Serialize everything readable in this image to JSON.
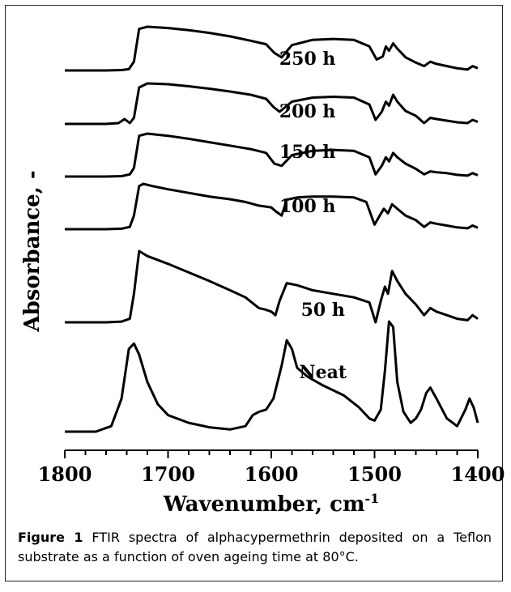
{
  "caption": {
    "label": "Figure 1",
    "text": "FTIR spectra of alphacypermethrin deposited on a Teflon substrate as a function of oven ageing time at 80°C."
  },
  "chart_data": {
    "type": "line",
    "xlabel": "Wavenumber, cm",
    "xlabel_sup": "-1",
    "ylabel": "Absorbance, -",
    "x_reversed": true,
    "xlim": [
      1800,
      1400
    ],
    "xticks": [
      1800,
      1700,
      1600,
      1500,
      1400
    ],
    "grid": false,
    "series": [
      {
        "name": "250 h",
        "points": [
          [
            1800,
            0
          ],
          [
            1760,
            0
          ],
          [
            1745,
            0.01
          ],
          [
            1738,
            0.03
          ],
          [
            1733,
            0.2
          ],
          [
            1728,
            0.95
          ],
          [
            1720,
            1.0
          ],
          [
            1700,
            0.97
          ],
          [
            1680,
            0.92
          ],
          [
            1660,
            0.86
          ],
          [
            1640,
            0.78
          ],
          [
            1620,
            0.68
          ],
          [
            1605,
            0.6
          ],
          [
            1597,
            0.4
          ],
          [
            1590,
            0.3
          ],
          [
            1580,
            0.58
          ],
          [
            1560,
            0.7
          ],
          [
            1540,
            0.72
          ],
          [
            1520,
            0.7
          ],
          [
            1505,
            0.55
          ],
          [
            1498,
            0.25
          ],
          [
            1492,
            0.32
          ],
          [
            1489,
            0.55
          ],
          [
            1486,
            0.45
          ],
          [
            1482,
            0.62
          ],
          [
            1478,
            0.5
          ],
          [
            1470,
            0.3
          ],
          [
            1460,
            0.18
          ],
          [
            1452,
            0.1
          ],
          [
            1446,
            0.2
          ],
          [
            1440,
            0.15
          ],
          [
            1430,
            0.1
          ],
          [
            1420,
            0.05
          ],
          [
            1410,
            0.02
          ],
          [
            1405,
            0.1
          ],
          [
            1400,
            0.05
          ]
        ]
      },
      {
        "name": "200 h",
        "points": [
          [
            1800,
            0
          ],
          [
            1760,
            0
          ],
          [
            1748,
            0.02
          ],
          [
            1742,
            0.12
          ],
          [
            1737,
            0.02
          ],
          [
            1733,
            0.15
          ],
          [
            1728,
            0.9
          ],
          [
            1720,
            1.0
          ],
          [
            1700,
            0.98
          ],
          [
            1680,
            0.93
          ],
          [
            1660,
            0.87
          ],
          [
            1640,
            0.8
          ],
          [
            1620,
            0.72
          ],
          [
            1605,
            0.62
          ],
          [
            1598,
            0.42
          ],
          [
            1592,
            0.3
          ],
          [
            1580,
            0.55
          ],
          [
            1560,
            0.65
          ],
          [
            1540,
            0.67
          ],
          [
            1520,
            0.65
          ],
          [
            1505,
            0.48
          ],
          [
            1499,
            0.1
          ],
          [
            1493,
            0.3
          ],
          [
            1489,
            0.55
          ],
          [
            1486,
            0.45
          ],
          [
            1482,
            0.72
          ],
          [
            1478,
            0.55
          ],
          [
            1470,
            0.32
          ],
          [
            1460,
            0.2
          ],
          [
            1452,
            0.02
          ],
          [
            1446,
            0.15
          ],
          [
            1440,
            0.12
          ],
          [
            1430,
            0.08
          ],
          [
            1420,
            0.04
          ],
          [
            1410,
            0.02
          ],
          [
            1405,
            0.1
          ],
          [
            1400,
            0.05
          ]
        ]
      },
      {
        "name": "150 h",
        "points": [
          [
            1800,
            0
          ],
          [
            1760,
            0
          ],
          [
            1745,
            0.01
          ],
          [
            1737,
            0.05
          ],
          [
            1733,
            0.2
          ],
          [
            1728,
            0.95
          ],
          [
            1720,
            1.0
          ],
          [
            1700,
            0.95
          ],
          [
            1680,
            0.88
          ],
          [
            1660,
            0.8
          ],
          [
            1640,
            0.72
          ],
          [
            1620,
            0.64
          ],
          [
            1605,
            0.55
          ],
          [
            1597,
            0.3
          ],
          [
            1590,
            0.25
          ],
          [
            1580,
            0.5
          ],
          [
            1560,
            0.6
          ],
          [
            1540,
            0.62
          ],
          [
            1520,
            0.6
          ],
          [
            1505,
            0.45
          ],
          [
            1499,
            0.05
          ],
          [
            1493,
            0.25
          ],
          [
            1489,
            0.45
          ],
          [
            1486,
            0.35
          ],
          [
            1482,
            0.55
          ],
          [
            1478,
            0.45
          ],
          [
            1470,
            0.3
          ],
          [
            1460,
            0.18
          ],
          [
            1452,
            0.05
          ],
          [
            1446,
            0.12
          ],
          [
            1440,
            0.1
          ],
          [
            1430,
            0.08
          ],
          [
            1420,
            0.04
          ],
          [
            1410,
            0.02
          ],
          [
            1405,
            0.08
          ],
          [
            1400,
            0.03
          ]
        ]
      },
      {
        "name": "100 h",
        "points": [
          [
            1800,
            0
          ],
          [
            1760,
            0
          ],
          [
            1745,
            0.01
          ],
          [
            1737,
            0.05
          ],
          [
            1733,
            0.3
          ],
          [
            1728,
            0.95
          ],
          [
            1724,
            1.0
          ],
          [
            1715,
            0.95
          ],
          [
            1700,
            0.88
          ],
          [
            1680,
            0.8
          ],
          [
            1660,
            0.72
          ],
          [
            1640,
            0.66
          ],
          [
            1625,
            0.6
          ],
          [
            1612,
            0.52
          ],
          [
            1606,
            0.5
          ],
          [
            1600,
            0.48
          ],
          [
            1596,
            0.4
          ],
          [
            1590,
            0.3
          ],
          [
            1585,
            0.65
          ],
          [
            1575,
            0.7
          ],
          [
            1560,
            0.72
          ],
          [
            1540,
            0.72
          ],
          [
            1520,
            0.7
          ],
          [
            1508,
            0.6
          ],
          [
            1500,
            0.1
          ],
          [
            1495,
            0.3
          ],
          [
            1491,
            0.45
          ],
          [
            1487,
            0.35
          ],
          [
            1483,
            0.55
          ],
          [
            1478,
            0.45
          ],
          [
            1470,
            0.3
          ],
          [
            1460,
            0.2
          ],
          [
            1452,
            0.05
          ],
          [
            1446,
            0.15
          ],
          [
            1440,
            0.12
          ],
          [
            1430,
            0.08
          ],
          [
            1420,
            0.04
          ],
          [
            1410,
            0.02
          ],
          [
            1405,
            0.08
          ],
          [
            1400,
            0.03
          ]
        ]
      },
      {
        "name": "50 h",
        "points": [
          [
            1800,
            0
          ],
          [
            1760,
            0
          ],
          [
            1745,
            0.01
          ],
          [
            1737,
            0.05
          ],
          [
            1733,
            0.4
          ],
          [
            1728,
            1.0
          ],
          [
            1720,
            0.93
          ],
          [
            1700,
            0.82
          ],
          [
            1680,
            0.7
          ],
          [
            1660,
            0.58
          ],
          [
            1640,
            0.45
          ],
          [
            1625,
            0.35
          ],
          [
            1612,
            0.2
          ],
          [
            1606,
            0.18
          ],
          [
            1600,
            0.15
          ],
          [
            1596,
            0.1
          ],
          [
            1592,
            0.3
          ],
          [
            1585,
            0.55
          ],
          [
            1575,
            0.52
          ],
          [
            1560,
            0.45
          ],
          [
            1540,
            0.4
          ],
          [
            1520,
            0.35
          ],
          [
            1505,
            0.28
          ],
          [
            1499,
            0.0
          ],
          [
            1494,
            0.3
          ],
          [
            1490,
            0.5
          ],
          [
            1487,
            0.4
          ],
          [
            1483,
            0.72
          ],
          [
            1478,
            0.58
          ],
          [
            1470,
            0.4
          ],
          [
            1460,
            0.25
          ],
          [
            1452,
            0.1
          ],
          [
            1446,
            0.2
          ],
          [
            1440,
            0.15
          ],
          [
            1430,
            0.1
          ],
          [
            1420,
            0.05
          ],
          [
            1410,
            0.03
          ],
          [
            1405,
            0.1
          ],
          [
            1400,
            0.05
          ]
        ]
      },
      {
        "name": "Neat",
        "points": [
          [
            1800,
            0
          ],
          [
            1770,
            0
          ],
          [
            1755,
            0.05
          ],
          [
            1745,
            0.3
          ],
          [
            1738,
            0.75
          ],
          [
            1733,
            0.8
          ],
          [
            1728,
            0.7
          ],
          [
            1720,
            0.45
          ],
          [
            1710,
            0.25
          ],
          [
            1700,
            0.15
          ],
          [
            1680,
            0.08
          ],
          [
            1660,
            0.04
          ],
          [
            1640,
            0.02
          ],
          [
            1625,
            0.05
          ],
          [
            1618,
            0.15
          ],
          [
            1612,
            0.18
          ],
          [
            1605,
            0.2
          ],
          [
            1598,
            0.3
          ],
          [
            1590,
            0.6
          ],
          [
            1585,
            0.83
          ],
          [
            1580,
            0.75
          ],
          [
            1575,
            0.58
          ],
          [
            1565,
            0.5
          ],
          [
            1550,
            0.42
          ],
          [
            1530,
            0.33
          ],
          [
            1515,
            0.22
          ],
          [
            1505,
            0.12
          ],
          [
            1500,
            0.1
          ],
          [
            1494,
            0.2
          ],
          [
            1490,
            0.55
          ],
          [
            1486,
            1.0
          ],
          [
            1482,
            0.95
          ],
          [
            1478,
            0.45
          ],
          [
            1472,
            0.18
          ],
          [
            1465,
            0.08
          ],
          [
            1460,
            0.12
          ],
          [
            1455,
            0.2
          ],
          [
            1450,
            0.35
          ],
          [
            1446,
            0.4
          ],
          [
            1440,
            0.3
          ],
          [
            1430,
            0.12
          ],
          [
            1420,
            0.05
          ],
          [
            1412,
            0.2
          ],
          [
            1408,
            0.3
          ],
          [
            1404,
            0.22
          ],
          [
            1400,
            0.08
          ]
        ]
      }
    ]
  }
}
